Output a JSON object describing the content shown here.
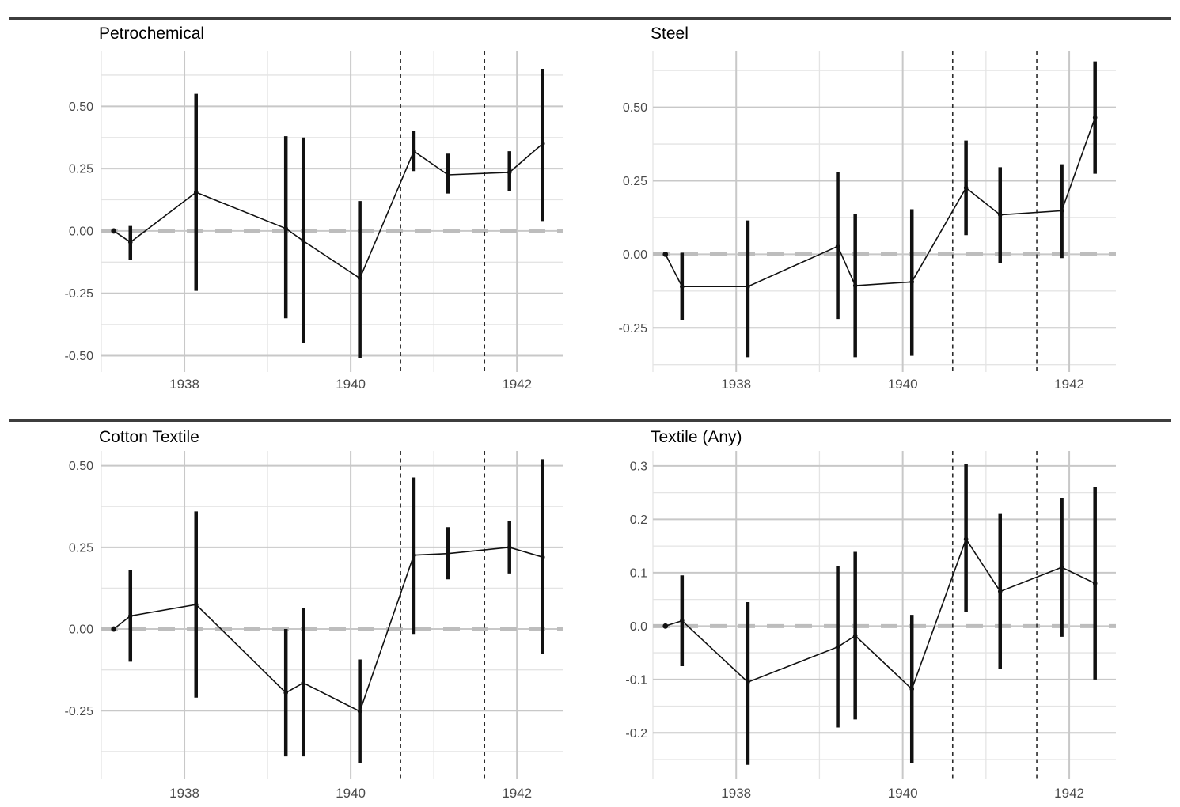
{
  "figure": {
    "kind": "event-study-figure",
    "rows": 2,
    "cols": 2,
    "background": "#ffffff",
    "divider_color": "#3d3d3d"
  },
  "style": {
    "grid_major_color": "#c8c8c8",
    "grid_minor_color": "#e4e4e4",
    "zero_line_color": "#bdbdbd",
    "event_line_color": "#2b2b2b",
    "series_color": "#111111",
    "tick_label_color": "#4a4a4a",
    "title_color": "#000000"
  },
  "chart_data": {
    "type": "line",
    "subtype": "event-study point estimates with confidence intervals",
    "grid": true,
    "legend": "none",
    "xlabel": "",
    "ylabel": "",
    "x_axis": {
      "lim": [
        1937.0,
        1942.56
      ],
      "major_ticks": [
        1938,
        1940,
        1942
      ],
      "major_labels": [
        "1938",
        "1940",
        "1942"
      ],
      "minor_ticks": [
        1937,
        1939,
        1941
      ]
    },
    "event_lines_x": [
      1940.6,
      1941.61
    ],
    "zero_line_y": 0,
    "reference_point": {
      "x": 1937.15,
      "y": 0
    },
    "estimate_x": [
      1937.35,
      1938.14,
      1939.22,
      1939.43,
      1940.11,
      1940.76,
      1941.17,
      1941.91,
      1942.31
    ],
    "panels": [
      {
        "title": "Petrochemical",
        "ylim": [
          -0.565,
          0.72
        ],
        "y_ticks": [
          {
            "v": 0.5,
            "label": "0.50"
          },
          {
            "v": 0.25,
            "label": "0.25"
          },
          {
            "v": 0.0,
            "label": "0.00"
          },
          {
            "v": -0.25,
            "label": "-0.25"
          },
          {
            "v": -0.5,
            "label": "-0.50"
          }
        ],
        "y_minor": [
          -0.375,
          -0.125,
          0.125,
          0.375,
          0.625
        ],
        "series": [
          {
            "name": "estimate",
            "values": [
              -0.045,
              0.155,
              0.01,
              -0.04,
              -0.19,
              0.32,
              0.225,
              0.235,
              0.35
            ]
          },
          {
            "name": "ci_lower",
            "values": [
              -0.115,
              -0.24,
              -0.35,
              -0.45,
              -0.51,
              0.24,
              0.15,
              0.16,
              0.04
            ]
          },
          {
            "name": "ci_upper",
            "values": [
              0.02,
              0.55,
              0.38,
              0.375,
              0.12,
              0.4,
              0.31,
              0.32,
              0.65
            ]
          }
        ]
      },
      {
        "title": "Steel",
        "ylim": [
          -0.4,
          0.69
        ],
        "y_ticks": [
          {
            "v": 0.5,
            "label": "0.50"
          },
          {
            "v": 0.25,
            "label": "0.25"
          },
          {
            "v": 0.0,
            "label": "0.00"
          },
          {
            "v": -0.25,
            "label": "-0.25"
          }
        ],
        "y_minor": [
          -0.375,
          -0.125,
          0.125,
          0.375,
          0.625
        ],
        "series": [
          {
            "name": "estimate",
            "values": [
              -0.11,
              -0.11,
              0.027,
              -0.107,
              -0.094,
              0.226,
              0.134,
              0.148,
              0.465
            ]
          },
          {
            "name": "ci_lower",
            "values": [
              -0.225,
              -0.35,
              -0.22,
              -0.35,
              -0.345,
              0.065,
              -0.03,
              -0.013,
              0.274
            ]
          },
          {
            "name": "ci_upper",
            "values": [
              0.005,
              0.115,
              0.28,
              0.137,
              0.153,
              0.387,
              0.296,
              0.306,
              0.656
            ]
          }
        ]
      },
      {
        "title": "Cotton Textile",
        "ylim": [
          -0.46,
          0.545
        ],
        "y_ticks": [
          {
            "v": 0.5,
            "label": "0.50"
          },
          {
            "v": 0.25,
            "label": "0.25"
          },
          {
            "v": 0.0,
            "label": "0.00"
          },
          {
            "v": -0.25,
            "label": "-0.25"
          }
        ],
        "y_minor": [
          -0.375,
          -0.125,
          0.125,
          0.375
        ],
        "series": [
          {
            "name": "estimate",
            "values": [
              0.04,
              0.075,
              -0.195,
              -0.165,
              -0.252,
              0.226,
              0.231,
              0.25,
              0.22
            ]
          },
          {
            "name": "ci_lower",
            "values": [
              -0.1,
              -0.21,
              -0.39,
              -0.39,
              -0.41,
              -0.015,
              0.152,
              0.17,
              -0.075
            ]
          },
          {
            "name": "ci_upper",
            "values": [
              0.18,
              0.36,
              0.0,
              0.065,
              -0.093,
              0.464,
              0.312,
              0.33,
              0.52
            ]
          }
        ]
      },
      {
        "title": "Textile (Any)",
        "ylim": [
          -0.287,
          0.328
        ],
        "y_ticks": [
          {
            "v": 0.3,
            "label": "0.3"
          },
          {
            "v": 0.2,
            "label": "0.2"
          },
          {
            "v": 0.1,
            "label": "0.1"
          },
          {
            "v": 0.0,
            "label": "0.0"
          },
          {
            "v": -0.1,
            "label": "-0.1"
          },
          {
            "v": -0.2,
            "label": "-0.2"
          }
        ],
        "y_minor": [
          -0.25,
          -0.15,
          -0.05,
          0.05,
          0.15,
          0.25
        ],
        "series": [
          {
            "name": "estimate",
            "values": [
              0.01,
              -0.105,
              -0.039,
              -0.018,
              -0.118,
              0.163,
              0.065,
              0.11,
              0.08
            ]
          },
          {
            "name": "ci_lower",
            "values": [
              -0.075,
              -0.26,
              -0.19,
              -0.175,
              -0.257,
              0.027,
              -0.08,
              -0.02,
              -0.1
            ]
          },
          {
            "name": "ci_upper",
            "values": [
              0.095,
              0.045,
              0.112,
              0.139,
              0.021,
              0.304,
              0.21,
              0.24,
              0.26
            ]
          }
        ]
      }
    ]
  }
}
